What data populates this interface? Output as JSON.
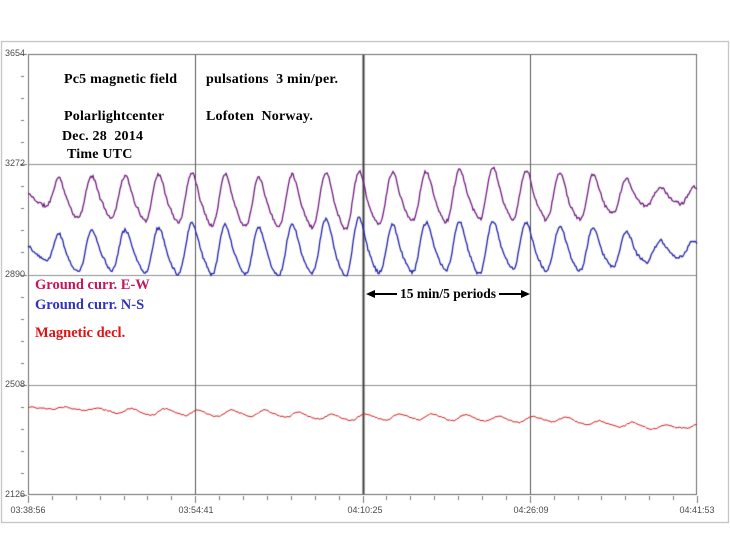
{
  "header": {
    "title_left": "Pc5 magnetic field",
    "title_right": "pulsations  3 min/per.",
    "org": "Polarlightcenter",
    "location": "Lofoten  Norway.",
    "date": "Dec. 28  2014",
    "time_label": "Time UTC"
  },
  "legend": {
    "items": [
      {
        "label": "Ground curr. E-W",
        "color": "#c4175b"
      },
      {
        "label": "Ground curr. N-S",
        "color": "#3232bb"
      },
      {
        "label": "Magnetic decl.",
        "color": "#dd1414"
      }
    ]
  },
  "annotation": {
    "label": "15 min/5 periods"
  },
  "chart_data": {
    "type": "line",
    "title": "Pc5 magnetic field pulsations 3 min/per.",
    "subtitle": "Polarlightcenter Lofoten Norway. Dec. 28 2014 Time UTC",
    "grid": true,
    "period_annotation": "15 min/5 periods",
    "x_axis": {
      "label": "Time UTC",
      "tick_labels": [
        "03:38:56",
        "03:54:41",
        "04:10:25",
        "04:26:09",
        "04:41:53"
      ],
      "minutes_span": 63,
      "minor_ticks_per_interval": 6
    },
    "y_axis": {
      "tick_labels": [
        "3654",
        "3272",
        "2890",
        "2508",
        "2126"
      ],
      "max": 3654,
      "min": 2126,
      "minor_ticks_per_interval": 4
    },
    "series": [
      {
        "name": "Ground curr. E-W",
        "color": "#701d7d",
        "line_width": 1.3,
        "baseline": 3154,
        "amplitude": 82,
        "period_min": 3.15,
        "phase": 2.0,
        "envelope": [
          [
            0,
            0.25
          ],
          [
            1.5,
            0.3
          ],
          [
            3,
            0.8
          ],
          [
            8,
            0.85
          ],
          [
            13,
            1.0
          ],
          [
            16,
            1.05
          ],
          [
            20,
            1.0
          ],
          [
            26,
            1.05
          ],
          [
            30,
            1.2
          ],
          [
            33,
            1.05
          ],
          [
            38,
            1.0
          ],
          [
            44,
            1.05
          ],
          [
            48,
            0.95
          ],
          [
            53,
            0.9
          ],
          [
            56,
            0.7
          ],
          [
            59,
            0.4
          ],
          [
            61,
            0.3
          ],
          [
            63,
            0.35
          ]
        ],
        "noise": {
          "jitter": 5,
          "walk": 2.2,
          "seed": 11
        }
      },
      {
        "name": "Ground curr. N-S",
        "color": "#2222aa",
        "line_width": 1.3,
        "baseline": 2974,
        "amplitude": 80,
        "period_min": 3.15,
        "phase": 2.0,
        "envelope": [
          [
            0,
            0.25
          ],
          [
            1.5,
            0.3
          ],
          [
            3,
            0.8
          ],
          [
            8,
            0.85
          ],
          [
            13,
            1.0
          ],
          [
            16,
            1.05
          ],
          [
            20,
            1.0
          ],
          [
            26,
            1.05
          ],
          [
            30,
            1.25
          ],
          [
            33,
            1.05
          ],
          [
            38,
            1.0
          ],
          [
            44,
            1.05
          ],
          [
            48,
            0.95
          ],
          [
            53,
            0.9
          ],
          [
            56,
            0.7
          ],
          [
            59,
            0.4
          ],
          [
            61,
            0.3
          ],
          [
            63,
            0.35
          ]
        ],
        "noise": {
          "jitter": 5,
          "walk": 2.2,
          "seed": 22
        }
      },
      {
        "name": "Magnetic decl.",
        "color": "#cc2424",
        "line_width": 1,
        "baseline_points": [
          [
            0,
            2427
          ],
          [
            5,
            2423
          ],
          [
            10,
            2414
          ],
          [
            16,
            2408
          ],
          [
            22,
            2402
          ],
          [
            28,
            2396
          ],
          [
            34,
            2392
          ],
          [
            40,
            2393
          ],
          [
            46,
            2388
          ],
          [
            50,
            2384
          ],
          [
            54,
            2374
          ],
          [
            57,
            2366
          ],
          [
            60,
            2362
          ],
          [
            63,
            2368
          ]
        ],
        "amplitude": 10,
        "period_min": 3.15,
        "phase": 0.8,
        "envelope": [
          [
            0,
            0.3
          ],
          [
            6,
            0.5
          ],
          [
            10,
            1.0
          ],
          [
            45,
            1.0
          ],
          [
            52,
            0.8
          ],
          [
            58,
            0.9
          ],
          [
            63,
            0.5
          ]
        ],
        "noise": {
          "jitter": 2,
          "walk": 1.0,
          "seed": 33
        }
      }
    ]
  }
}
